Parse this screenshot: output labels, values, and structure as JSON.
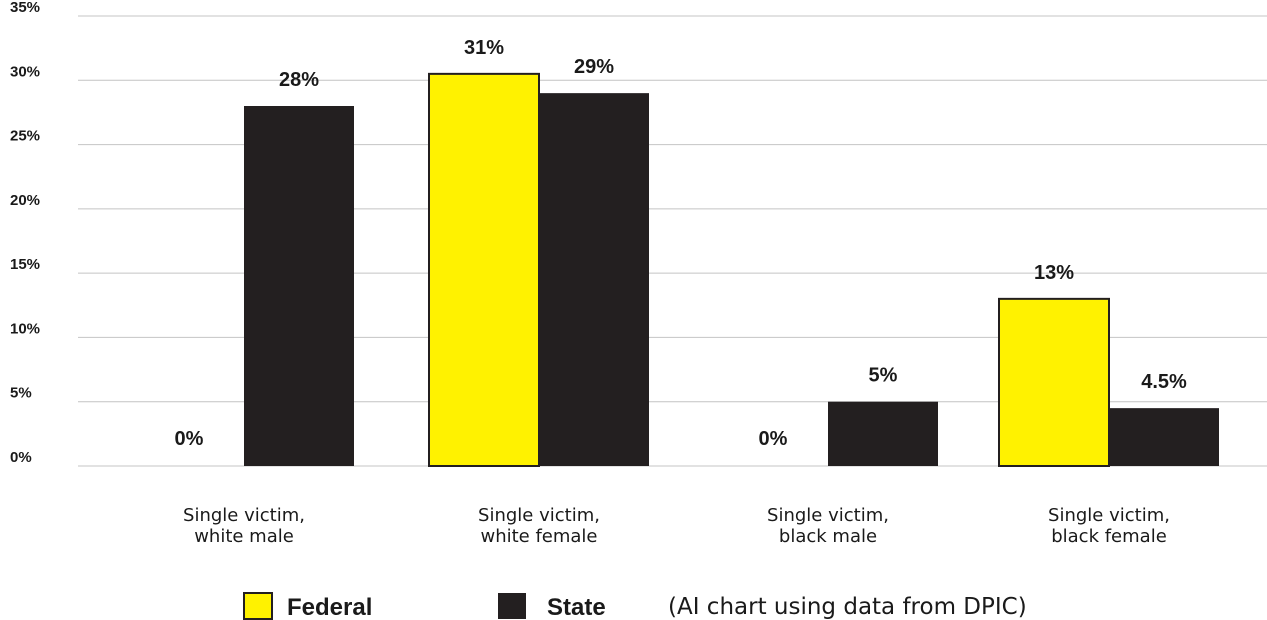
{
  "chart_data": {
    "type": "bar",
    "categories": [
      [
        "Single victim,",
        "white male"
      ],
      [
        "Single victim,",
        "white female"
      ],
      [
        "Single victim,",
        "black male"
      ],
      [
        "Single victim,",
        "black female"
      ]
    ],
    "series": [
      {
        "name": "Federal",
        "color": "#fff200",
        "values": [
          0,
          30.5,
          0,
          13
        ],
        "value_labels": [
          "0%",
          "31%",
          "0%",
          "13%"
        ]
      },
      {
        "name": "State",
        "color": "#231f20",
        "values": [
          28,
          29,
          5,
          4.5
        ],
        "value_labels": [
          "28%",
          "29%",
          "5%",
          "4.5%"
        ]
      }
    ],
    "ylim": [
      0,
      35
    ],
    "yticks": [
      0,
      5,
      10,
      15,
      20,
      25,
      30,
      35
    ],
    "ytick_labels": [
      "0%",
      "5%",
      "10%",
      "15%",
      "20%",
      "25%",
      "30%",
      "35%"
    ],
    "grid": true,
    "legend_position": "bottom-center",
    "note": "(AI chart using data from DPIC)",
    "xlabel": "",
    "ylabel": ""
  }
}
